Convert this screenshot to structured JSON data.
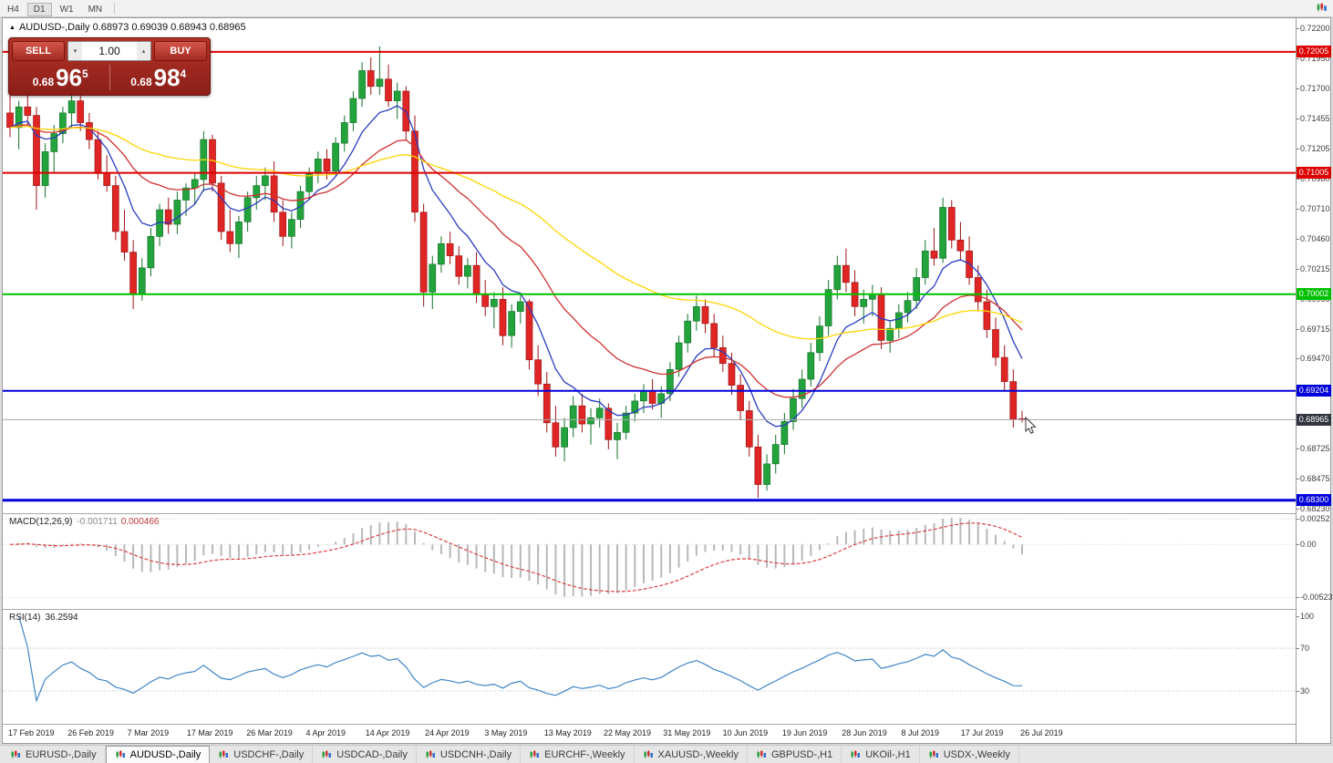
{
  "toolbar": {
    "timeframes": [
      "H4",
      "D1",
      "W1",
      "MN"
    ],
    "active_timeframe": "D1"
  },
  "window": {
    "title_icon": "▲",
    "symbol_title": "AUDUSD-,Daily",
    "ohlc": {
      "open": "0.68973",
      "high": "0.69039",
      "low": "0.68943",
      "close": "0.68965"
    }
  },
  "trade_panel": {
    "sell_label": "SELL",
    "buy_label": "BUY",
    "volume": "1.00",
    "volume_down_icon": "▾",
    "volume_up_icon": "▴",
    "sell_price": {
      "base": "0.68",
      "pips": "96",
      "pipette": "5"
    },
    "buy_price": {
      "base": "0.68",
      "pips": "98",
      "pipette": "4"
    }
  },
  "price_scale": {
    "ticks": [
      "0.72200",
      "0.71950",
      "0.71700",
      "0.71455",
      "0.71205",
      "0.70960",
      "0.70710",
      "0.70460",
      "0.70215",
      "0.69965",
      "0.69715",
      "0.69470",
      "0.69220",
      "0.68975",
      "0.68725",
      "0.68475",
      "0.68230"
    ]
  },
  "levels": [
    {
      "price": 0.72005,
      "label": "0.72005",
      "color": "#dd0000",
      "width": 2
    },
    {
      "price": 0.71005,
      "label": "0.71005",
      "color": "#dd0000",
      "width": 2
    },
    {
      "price": 0.70002,
      "label": "0.70002",
      "color": "#00c000",
      "width": 2
    },
    {
      "price": 0.69204,
      "label": "0.69204",
      "color": "#0000dc",
      "width": 2
    },
    {
      "price": 0.683,
      "label": "0.68300",
      "color": "#0000dc",
      "width": 3
    }
  ],
  "bid": {
    "price": 0.68965,
    "label": "0.68965",
    "line_color": "#a8a8a8",
    "badge_color": "#30353f"
  },
  "chart_data": {
    "type": "candlestick",
    "title": "AUDUSD-,Daily",
    "symbol": "AUDUSD-",
    "timeframe": "Daily",
    "y_axis": {
      "top": 0.722,
      "bottom": 0.6823
    },
    "up_color": "#23a33c",
    "down_color": "#e02525",
    "up_border": "#14732a",
    "down_border": "#9d1414",
    "x_labels": [
      "17 Feb 2019",
      "26 Feb 2019",
      "7 Mar 2019",
      "17 Mar 2019",
      "26 Mar 2019",
      "4 Apr 2019",
      "14 Apr 2019",
      "24 Apr 2019",
      "3 May 2019",
      "13 May 2019",
      "22 May 2019",
      "31 May 2019",
      "10 Jun 2019",
      "19 Jun 2019",
      "28 Jun 2019",
      "8 Jul 2019",
      "17 Jul 2019",
      "26 Jul 2019"
    ],
    "overlays": [
      {
        "name": "fast-ma",
        "type": "ema",
        "period": 8,
        "color": "#2a3cc0"
      },
      {
        "name": "mid-ma",
        "type": "ema",
        "period": 21,
        "color": "#d03030"
      },
      {
        "name": "slow-ma",
        "type": "ema",
        "period": 55,
        "color": "#ffd400"
      }
    ],
    "candles": [
      [
        0.715,
        0.7168,
        0.713,
        0.7138
      ],
      [
        0.7138,
        0.716,
        0.712,
        0.7155
      ],
      [
        0.7155,
        0.717,
        0.714,
        0.7148
      ],
      [
        0.7148,
        0.7155,
        0.707,
        0.709
      ],
      [
        0.709,
        0.7125,
        0.708,
        0.7118
      ],
      [
        0.7118,
        0.714,
        0.71,
        0.7133
      ],
      [
        0.7133,
        0.7155,
        0.7125,
        0.715
      ],
      [
        0.715,
        0.7168,
        0.7138,
        0.716
      ],
      [
        0.716,
        0.7165,
        0.7135,
        0.7142
      ],
      [
        0.7142,
        0.715,
        0.712,
        0.7128
      ],
      [
        0.7128,
        0.7135,
        0.7095,
        0.71
      ],
      [
        0.71,
        0.7115,
        0.7085,
        0.709
      ],
      [
        0.709,
        0.7098,
        0.7045,
        0.7052
      ],
      [
        0.7052,
        0.707,
        0.7028,
        0.7035
      ],
      [
        0.7035,
        0.7045,
        0.6988,
        0.7
      ],
      [
        0.7,
        0.703,
        0.6995,
        0.7022
      ],
      [
        0.7022,
        0.7055,
        0.7015,
        0.7048
      ],
      [
        0.7048,
        0.7075,
        0.704,
        0.707
      ],
      [
        0.707,
        0.708,
        0.705,
        0.7058
      ],
      [
        0.7058,
        0.7085,
        0.705,
        0.7078
      ],
      [
        0.7078,
        0.7092,
        0.7065,
        0.7088
      ],
      [
        0.7088,
        0.71,
        0.7075,
        0.7095
      ],
      [
        0.7095,
        0.7135,
        0.7085,
        0.7128
      ],
      [
        0.7128,
        0.7132,
        0.7085,
        0.7092
      ],
      [
        0.7092,
        0.7098,
        0.7045,
        0.7052
      ],
      [
        0.7052,
        0.707,
        0.7035,
        0.7042
      ],
      [
        0.7042,
        0.7065,
        0.703,
        0.706
      ],
      [
        0.706,
        0.7085,
        0.7052,
        0.708
      ],
      [
        0.708,
        0.7098,
        0.707,
        0.709
      ],
      [
        0.709,
        0.7105,
        0.7078,
        0.7098
      ],
      [
        0.7098,
        0.711,
        0.706,
        0.7068
      ],
      [
        0.7068,
        0.7078,
        0.704,
        0.7048
      ],
      [
        0.7048,
        0.7068,
        0.7038,
        0.7062
      ],
      [
        0.7062,
        0.709,
        0.7055,
        0.7085
      ],
      [
        0.7085,
        0.7105,
        0.7078,
        0.71
      ],
      [
        0.71,
        0.7118,
        0.7092,
        0.7112
      ],
      [
        0.7112,
        0.712,
        0.7095,
        0.7102
      ],
      [
        0.7102,
        0.713,
        0.7098,
        0.7125
      ],
      [
        0.7125,
        0.7148,
        0.7118,
        0.7142
      ],
      [
        0.7142,
        0.7168,
        0.7135,
        0.7162
      ],
      [
        0.7162,
        0.7192,
        0.7155,
        0.7185
      ],
      [
        0.7185,
        0.7196,
        0.7165,
        0.7172
      ],
      [
        0.7172,
        0.7205,
        0.7165,
        0.7178
      ],
      [
        0.7178,
        0.719,
        0.7155,
        0.716
      ],
      [
        0.716,
        0.7175,
        0.7145,
        0.7168
      ],
      [
        0.7168,
        0.7172,
        0.7128,
        0.7135
      ],
      [
        0.7135,
        0.7148,
        0.706,
        0.7068
      ],
      [
        0.7068,
        0.7075,
        0.699,
        0.7002
      ],
      [
        0.7002,
        0.7032,
        0.6988,
        0.7025
      ],
      [
        0.7025,
        0.7048,
        0.7018,
        0.7042
      ],
      [
        0.7042,
        0.7052,
        0.7025,
        0.7032
      ],
      [
        0.7032,
        0.704,
        0.7008,
        0.7015
      ],
      [
        0.7015,
        0.703,
        0.7005,
        0.7024
      ],
      [
        0.7024,
        0.7035,
        0.6993,
        0.7
      ],
      [
        0.7,
        0.7012,
        0.6982,
        0.699
      ],
      [
        0.699,
        0.7002,
        0.6972,
        0.6996
      ],
      [
        0.6996,
        0.7006,
        0.6958,
        0.6966
      ],
      [
        0.6966,
        0.6992,
        0.6956,
        0.6986
      ],
      [
        0.6986,
        0.7,
        0.6976,
        0.6994
      ],
      [
        0.6994,
        0.6996,
        0.6938,
        0.6946
      ],
      [
        0.6946,
        0.6958,
        0.6916,
        0.6926
      ],
      [
        0.6926,
        0.6936,
        0.6886,
        0.6894
      ],
      [
        0.6894,
        0.6908,
        0.6866,
        0.6874
      ],
      [
        0.6874,
        0.6898,
        0.6862,
        0.689
      ],
      [
        0.689,
        0.6916,
        0.6882,
        0.6908
      ],
      [
        0.6908,
        0.6918,
        0.6886,
        0.6893
      ],
      [
        0.6893,
        0.6906,
        0.6876,
        0.6898
      ],
      [
        0.6898,
        0.6914,
        0.689,
        0.6906
      ],
      [
        0.6906,
        0.691,
        0.6872,
        0.688
      ],
      [
        0.688,
        0.6894,
        0.6864,
        0.6886
      ],
      [
        0.6886,
        0.6908,
        0.688,
        0.6902
      ],
      [
        0.6902,
        0.6918,
        0.6895,
        0.6912
      ],
      [
        0.6912,
        0.6926,
        0.6902,
        0.692
      ],
      [
        0.692,
        0.693,
        0.6905,
        0.691
      ],
      [
        0.691,
        0.6924,
        0.6898,
        0.6918
      ],
      [
        0.6918,
        0.6944,
        0.6912,
        0.6938
      ],
      [
        0.6938,
        0.6966,
        0.6932,
        0.696
      ],
      [
        0.696,
        0.6984,
        0.6952,
        0.6978
      ],
      [
        0.6978,
        0.6999,
        0.697,
        0.699
      ],
      [
        0.699,
        0.6996,
        0.6968,
        0.6976
      ],
      [
        0.6976,
        0.6984,
        0.6948,
        0.6956
      ],
      [
        0.6956,
        0.6966,
        0.6936,
        0.6943
      ],
      [
        0.6943,
        0.6952,
        0.6917,
        0.6925
      ],
      [
        0.6925,
        0.6934,
        0.6896,
        0.6904
      ],
      [
        0.6904,
        0.6912,
        0.6866,
        0.6874
      ],
      [
        0.6874,
        0.6884,
        0.6832,
        0.6843
      ],
      [
        0.6843,
        0.6868,
        0.6838,
        0.686
      ],
      [
        0.686,
        0.6884,
        0.6852,
        0.6876
      ],
      [
        0.6876,
        0.6902,
        0.6868,
        0.6895
      ],
      [
        0.6895,
        0.6922,
        0.6888,
        0.6914
      ],
      [
        0.6914,
        0.6938,
        0.6906,
        0.693
      ],
      [
        0.693,
        0.696,
        0.6924,
        0.6952
      ],
      [
        0.6952,
        0.6982,
        0.6945,
        0.6974
      ],
      [
        0.6974,
        0.7012,
        0.6966,
        0.7004
      ],
      [
        0.7004,
        0.7032,
        0.6996,
        0.7024
      ],
      [
        0.7024,
        0.7038,
        0.7002,
        0.701
      ],
      [
        0.701,
        0.702,
        0.6982,
        0.699
      ],
      [
        0.699,
        0.7004,
        0.6976,
        0.6996
      ],
      [
        0.6996,
        0.7008,
        0.6982,
        0.7
      ],
      [
        0.7,
        0.7006,
        0.6955,
        0.6962
      ],
      [
        0.6962,
        0.6978,
        0.6952,
        0.6972
      ],
      [
        0.6972,
        0.6992,
        0.6964,
        0.6985
      ],
      [
        0.6985,
        0.7002,
        0.6977,
        0.6995
      ],
      [
        0.6995,
        0.7022,
        0.6988,
        0.7014
      ],
      [
        0.7014,
        0.7045,
        0.7008,
        0.7036
      ],
      [
        0.7036,
        0.7055,
        0.7024,
        0.703
      ],
      [
        0.703,
        0.708,
        0.7026,
        0.7072
      ],
      [
        0.7072,
        0.7078,
        0.7038,
        0.7045
      ],
      [
        0.7045,
        0.706,
        0.7028,
        0.7036
      ],
      [
        0.7036,
        0.7048,
        0.7008,
        0.7014
      ],
      [
        0.7014,
        0.7024,
        0.6986,
        0.6994
      ],
      [
        0.6994,
        0.7004,
        0.6964,
        0.6971
      ],
      [
        0.6971,
        0.6981,
        0.6941,
        0.6948
      ],
      [
        0.6948,
        0.6958,
        0.6921,
        0.6928
      ],
      [
        0.6928,
        0.6938,
        0.689,
        0.6897
      ],
      [
        0.68973,
        0.69039,
        0.68943,
        0.68965
      ]
    ]
  },
  "macd": {
    "name": "MACD(12,26,9)",
    "main_value": "-0.001711",
    "signal_value": "0.000466",
    "scale": [
      "0.00252",
      "0.00",
      "-0.00523"
    ],
    "scale_values": [
      0.00252,
      0,
      -0.00523
    ],
    "histogram_color": "#b8b8b8",
    "signal_color": "#d94040"
  },
  "rsi": {
    "name": "RSI(14)",
    "value": "36.2594",
    "period": 14,
    "level_labels": [
      "100",
      "70",
      "30"
    ],
    "level_values": [
      100,
      70,
      30
    ],
    "line_color": "#3f85c6"
  },
  "tabs": {
    "active_index": 1,
    "items": [
      "EURUSD-,Daily",
      "AUDUSD-,Daily",
      "USDCHF-,Daily",
      "USDCAD-,Daily",
      "USDCNH-,Daily",
      "EURCHF-,Weekly",
      "XAUUSD-,Weekly",
      "GBPUSD-,H1",
      "UKOil-,H1",
      "USDX-,Weekly"
    ]
  }
}
